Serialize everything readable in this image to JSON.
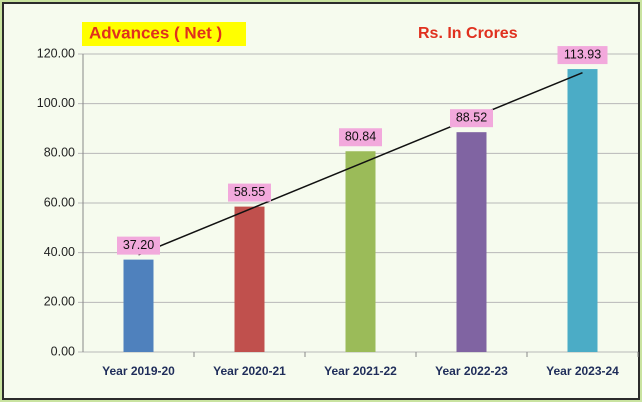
{
  "chart_data": {
    "type": "bar",
    "title": "Advances ( Net )",
    "subtitle": "Rs. In Crores",
    "categories": [
      "Year 2019-20",
      "Year 2020-21",
      "Year 2021-22",
      "Year 2022-23",
      "Year 2023-24"
    ],
    "values": [
      37.2,
      58.55,
      80.84,
      88.52,
      113.93
    ],
    "value_labels": [
      "37.20",
      "58.55",
      "80.84",
      "88.52",
      "113.93"
    ],
    "colors": [
      "#4f81bd",
      "#c0504d",
      "#9bbb59",
      "#8064a2",
      "#4bacc6"
    ],
    "ylim": [
      0,
      120
    ],
    "yticks": [
      {
        "value": 0,
        "label": "0.00"
      },
      {
        "value": 20,
        "label": "20.00"
      },
      {
        "value": 40,
        "label": "40.00"
      },
      {
        "value": 60,
        "label": "60.00"
      },
      {
        "value": 80,
        "label": "80.00"
      },
      {
        "value": 100,
        "label": "100.00"
      },
      {
        "value": 120,
        "label": "120.00"
      }
    ],
    "grid": true,
    "trendline": "linear"
  }
}
